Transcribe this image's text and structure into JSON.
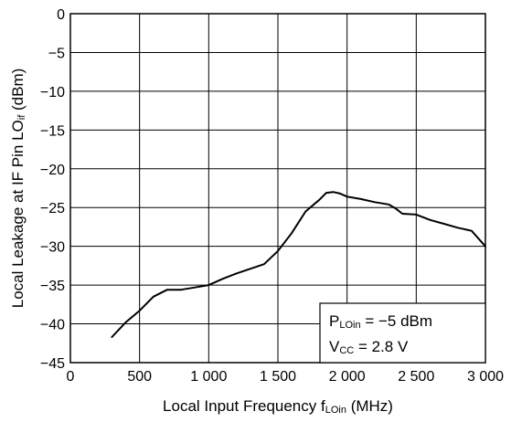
{
  "chart_data": {
    "type": "line",
    "xlabel": {
      "prefix": "Local Input Frequency  f",
      "sub": "LOin",
      "suffix": " (MHz)"
    },
    "ylabel": {
      "prefix": "Local Leakage at IF Pin  LO",
      "sub": "if",
      "suffix": " (dBm)"
    },
    "xlim": [
      0,
      3000
    ],
    "ylim": [
      -45,
      0
    ],
    "x_ticks": [
      {
        "value": 0,
        "label": "0"
      },
      {
        "value": 500,
        "label": "500"
      },
      {
        "value": 1000,
        "label": "1 000"
      },
      {
        "value": 1500,
        "label": "1 500"
      },
      {
        "value": 2000,
        "label": "2 000"
      },
      {
        "value": 2500,
        "label": "2 500"
      },
      {
        "value": 3000,
        "label": "3 000"
      }
    ],
    "y_ticks": [
      {
        "value": 0,
        "label": "0"
      },
      {
        "value": -5,
        "label": "−5"
      },
      {
        "value": -10,
        "label": "−10"
      },
      {
        "value": -15,
        "label": "−15"
      },
      {
        "value": -20,
        "label": "−20"
      },
      {
        "value": -25,
        "label": "−25"
      },
      {
        "value": -30,
        "label": "−30"
      },
      {
        "value": -35,
        "label": "−35"
      },
      {
        "value": -40,
        "label": "−40"
      },
      {
        "value": -45,
        "label": "−45"
      }
    ],
    "grid": true,
    "series": [
      {
        "color": "#000000",
        "x": [
          300,
          400,
          500,
          600,
          700,
          800,
          900,
          1000,
          1100,
          1200,
          1300,
          1400,
          1500,
          1600,
          1700,
          1800,
          1850,
          1900,
          1950,
          2000,
          2100,
          2200,
          2300,
          2350,
          2400,
          2500,
          2600,
          2700,
          2800,
          2900,
          3000
        ],
        "y": [
          -41.7,
          -39.8,
          -38.3,
          -36.5,
          -35.6,
          -35.6,
          -35.3,
          -35.0,
          -34.2,
          -33.5,
          -32.9,
          -32.3,
          -30.6,
          -28.3,
          -25.5,
          -24.0,
          -23.1,
          -23.0,
          -23.2,
          -23.6,
          -23.9,
          -24.3,
          -24.6,
          -25.1,
          -25.8,
          -25.9,
          -26.6,
          -27.1,
          -27.6,
          -28.0,
          -30.0
        ]
      }
    ],
    "annotation": {
      "position": "bottom-right",
      "lines": [
        {
          "prefix": "P",
          "sub": "LOin",
          "suffix": " = −5 dBm"
        },
        {
          "prefix": "V",
          "sub": "CC",
          "suffix": " = 2.8 V"
        }
      ]
    }
  }
}
